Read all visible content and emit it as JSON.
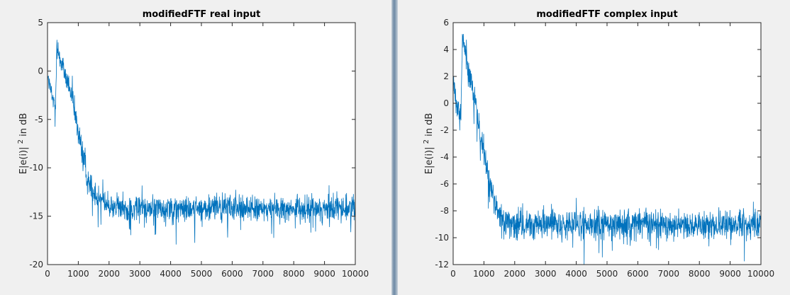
{
  "chart_data": [
    {
      "type": "line",
      "title": "modifiedFTF real input",
      "xlabel": "",
      "ylabel": "E|e(i)|^2 in dB",
      "xlim": [
        0,
        10000
      ],
      "ylim": [
        -20,
        5
      ],
      "xticks": [
        0,
        1000,
        2000,
        3000,
        4000,
        5000,
        6000,
        7000,
        8000,
        9000,
        10000
      ],
      "yticks": [
        -20,
        -15,
        -10,
        -5,
        0,
        5
      ],
      "grid": false,
      "color": "#0072bd",
      "series": [
        {
          "x": [
            0,
            100,
            200,
            250,
            300,
            400,
            500,
            700,
            900,
            1100,
            1300,
            1500,
            1700,
            2000,
            2500,
            3000,
            4000,
            5000,
            6000,
            7000,
            8000,
            9000,
            10000
          ],
          "y": [
            -0.5,
            -2.0,
            -3.2,
            -3.5,
            2.3,
            1.5,
            0.3,
            -1.5,
            -4.5,
            -8.0,
            -11.0,
            -12.5,
            -13.3,
            -14.0,
            -14.2,
            -14.2,
            -14.2,
            -14.2,
            -14.2,
            -14.2,
            -14.2,
            -14.2,
            -14.2
          ],
          "noise": [
            0.5,
            0.9,
            1.1,
            1.2,
            1.1,
            1.1,
            1.1,
            1.1,
            1.0,
            1.0,
            1.0,
            1.0,
            1.0,
            1.0,
            1.0,
            1.0,
            1.0,
            1.0,
            1.0,
            1.0,
            1.0,
            1.0,
            1.0
          ]
        }
      ]
    },
    {
      "type": "line",
      "title": "modifiedFTF complex input",
      "xlabel": "",
      "ylabel": "E|e(i)|^2 in dB",
      "xlim": [
        0,
        10000
      ],
      "ylim": [
        -12,
        6
      ],
      "xticks": [
        0,
        1000,
        2000,
        3000,
        4000,
        5000,
        6000,
        7000,
        8000,
        9000,
        10000
      ],
      "yticks": [
        -12,
        -10,
        -8,
        -6,
        -4,
        -2,
        0,
        2,
        4,
        6
      ],
      "grid": false,
      "color": "#0072bd",
      "series": [
        {
          "x": [
            0,
            100,
            200,
            250,
            300,
            400,
            500,
            700,
            900,
            1100,
            1300,
            1500,
            1700,
            2000,
            2500,
            3000,
            4000,
            5000,
            6000,
            7000,
            8000,
            9000,
            10000
          ],
          "y": [
            1.5,
            0.0,
            -0.8,
            -1.0,
            4.8,
            3.8,
            2.5,
            0.5,
            -2.5,
            -5.0,
            -7.0,
            -8.4,
            -9.0,
            -9.1,
            -9.1,
            -9.1,
            -9.1,
            -8.9,
            -8.9,
            -9.0,
            -9.1,
            -9.0,
            -9.0
          ],
          "noise": [
            0.6,
            0.7,
            0.7,
            0.8,
            0.7,
            0.8,
            0.8,
            0.8,
            0.8,
            0.8,
            0.8,
            0.8,
            0.8,
            0.8,
            0.8,
            0.8,
            0.8,
            0.8,
            0.8,
            0.8,
            0.8,
            0.8,
            0.8
          ]
        }
      ]
    }
  ]
}
